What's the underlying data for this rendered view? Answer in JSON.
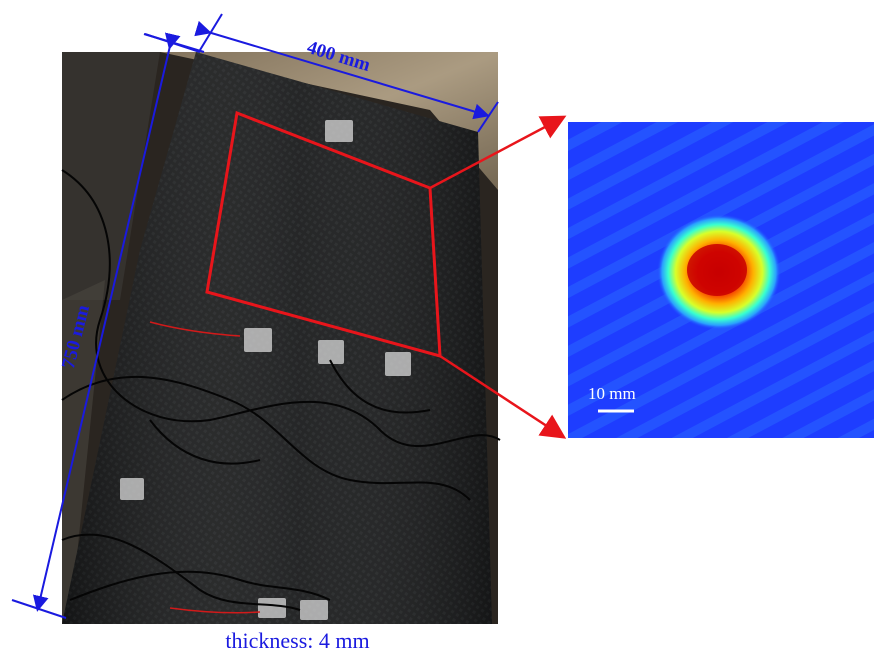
{
  "figure": {
    "width_dimension_label": "400 mm",
    "length_dimension_label": "750 mm",
    "scale_bar_label": "10 mm",
    "caption": "thickness: 4 mm"
  },
  "colors": {
    "dimension_lines": "#1a1adf",
    "highlight_box": "#e8151b",
    "panel": "#151616",
    "background_board": "#b9a88c",
    "heatmap_base": "#1a3cff",
    "heatmap_hot": "#e60b00"
  }
}
